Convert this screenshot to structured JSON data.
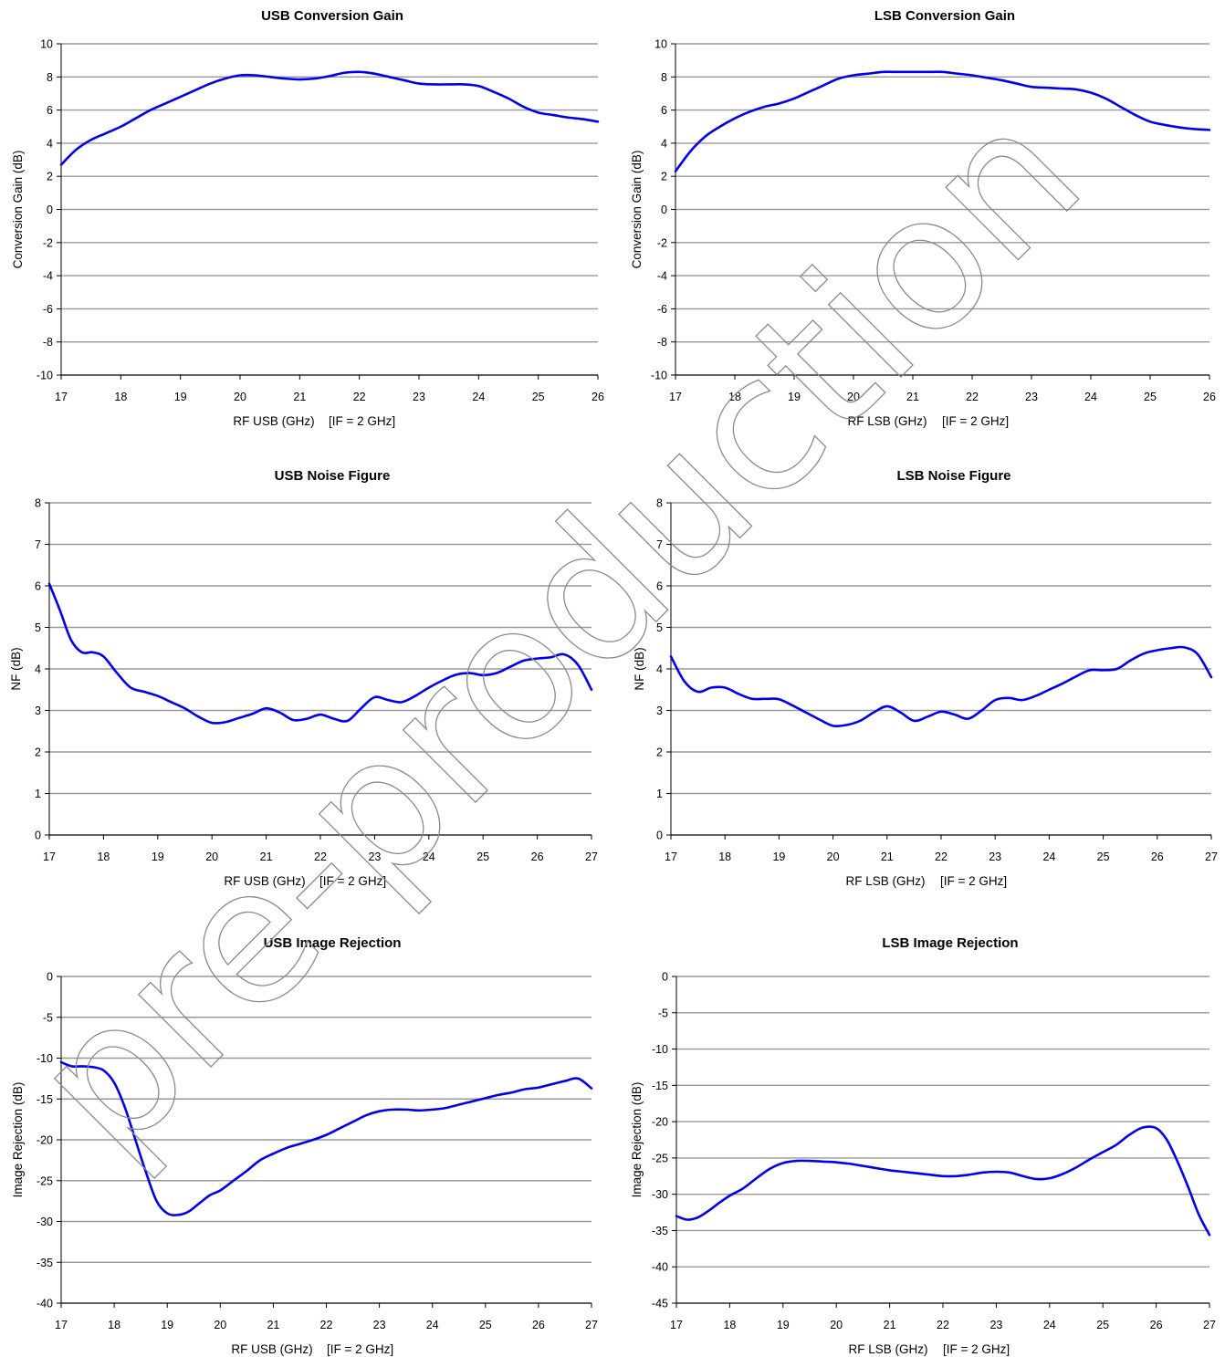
{
  "watermark": {
    "text": "pre-production"
  },
  "chart_data": [
    {
      "id": "usb-gain",
      "type": "line",
      "title": "USB Conversion Gain",
      "xlabel": "RF USB (GHz)",
      "xlabel_suffix": "[IF = 2 GHz]",
      "ylabel": "Conversion Gain  (dB)",
      "xlim": [
        17,
        26
      ],
      "ylim": [
        -10,
        10
      ],
      "xticks": [
        17,
        18,
        19,
        20,
        21,
        22,
        23,
        24,
        25,
        26
      ],
      "yticks": [
        -10,
        -8,
        -6,
        -4,
        -2,
        0,
        2,
        4,
        6,
        8,
        10
      ],
      "grid": true,
      "color": "#0000ee",
      "x": [
        17,
        17.25,
        17.5,
        17.75,
        18,
        18.25,
        18.5,
        18.75,
        19,
        19.25,
        19.5,
        19.75,
        20,
        20.25,
        20.5,
        20.75,
        21,
        21.25,
        21.5,
        21.75,
        22,
        22.25,
        22.5,
        22.75,
        23,
        23.25,
        23.5,
        23.75,
        24,
        24.25,
        24.5,
        24.75,
        25,
        25.25,
        25.5,
        25.75,
        26
      ],
      "y": [
        2.7,
        3.6,
        4.2,
        4.6,
        5.0,
        5.5,
        6.0,
        6.4,
        6.8,
        7.2,
        7.6,
        7.9,
        8.1,
        8.1,
        8.0,
        7.9,
        7.85,
        7.9,
        8.05,
        8.25,
        8.3,
        8.2,
        8.0,
        7.8,
        7.6,
        7.55,
        7.55,
        7.55,
        7.45,
        7.1,
        6.7,
        6.2,
        5.85,
        5.7,
        5.55,
        5.45,
        5.3
      ]
    },
    {
      "id": "lsb-gain",
      "type": "line",
      "title": "LSB Conversion Gain",
      "xlabel": "RF LSB (GHz)",
      "xlabel_suffix": "[IF = 2 GHz]",
      "ylabel": "Conversion Gain  (dB)",
      "xlim": [
        17,
        26
      ],
      "ylim": [
        -10,
        10
      ],
      "xticks": [
        17,
        18,
        19,
        20,
        21,
        22,
        23,
        24,
        25,
        26
      ],
      "yticks": [
        -10,
        -8,
        -6,
        -4,
        -2,
        0,
        2,
        4,
        6,
        8,
        10
      ],
      "grid": true,
      "color": "#0000ee",
      "x": [
        17,
        17.25,
        17.5,
        17.75,
        18,
        18.25,
        18.5,
        18.75,
        19,
        19.25,
        19.5,
        19.75,
        20,
        20.25,
        20.5,
        20.75,
        21,
        21.25,
        21.5,
        21.75,
        22,
        22.25,
        22.5,
        22.75,
        23,
        23.25,
        23.5,
        23.75,
        24,
        24.25,
        24.5,
        24.75,
        25,
        25.25,
        25.5,
        25.75,
        26
      ],
      "y": [
        2.3,
        3.5,
        4.4,
        5.0,
        5.5,
        5.9,
        6.2,
        6.4,
        6.7,
        7.1,
        7.5,
        7.9,
        8.1,
        8.2,
        8.3,
        8.3,
        8.3,
        8.3,
        8.3,
        8.2,
        8.1,
        7.95,
        7.8,
        7.6,
        7.4,
        7.35,
        7.3,
        7.25,
        7.05,
        6.7,
        6.2,
        5.7,
        5.3,
        5.1,
        4.95,
        4.85,
        4.8
      ]
    },
    {
      "id": "usb-nf",
      "type": "line",
      "title": "USB Noise Figure",
      "xlabel": "RF USB (GHz)",
      "xlabel_suffix": "[IF = 2 GHz]",
      "ylabel": "NF (dB)",
      "xlim": [
        17,
        27
      ],
      "ylim": [
        0,
        8
      ],
      "xticks": [
        17,
        18,
        19,
        20,
        21,
        22,
        23,
        24,
        25,
        26,
        27
      ],
      "yticks": [
        0,
        1,
        2,
        3,
        4,
        5,
        6,
        7,
        8
      ],
      "grid": true,
      "color": "#0000ee",
      "x": [
        17,
        17.2,
        17.4,
        17.6,
        17.8,
        18,
        18.25,
        18.5,
        18.75,
        19,
        19.25,
        19.5,
        19.75,
        20,
        20.25,
        20.5,
        20.75,
        21,
        21.25,
        21.5,
        21.75,
        22,
        22.25,
        22.5,
        22.75,
        23,
        23.25,
        23.5,
        23.75,
        24,
        24.25,
        24.5,
        24.75,
        25,
        25.25,
        25.5,
        25.75,
        26,
        26.25,
        26.5,
        26.75,
        27
      ],
      "y": [
        6.05,
        5.4,
        4.7,
        4.4,
        4.4,
        4.3,
        3.9,
        3.55,
        3.45,
        3.35,
        3.2,
        3.05,
        2.85,
        2.7,
        2.72,
        2.82,
        2.92,
        3.05,
        2.95,
        2.77,
        2.8,
        2.9,
        2.8,
        2.75,
        3.05,
        3.32,
        3.25,
        3.2,
        3.35,
        3.55,
        3.72,
        3.86,
        3.9,
        3.85,
        3.9,
        4.05,
        4.2,
        4.25,
        4.28,
        4.35,
        4.1,
        3.5
      ]
    },
    {
      "id": "lsb-nf",
      "type": "line",
      "title": "LSB Noise Figure",
      "xlabel": "RF LSB (GHz)",
      "xlabel_suffix": "[IF = 2 GHz]",
      "ylabel": "NF (dB)",
      "xlim": [
        17,
        27
      ],
      "ylim": [
        0,
        8
      ],
      "xticks": [
        17,
        18,
        19,
        20,
        21,
        22,
        23,
        24,
        25,
        26,
        27
      ],
      "yticks": [
        0,
        1,
        2,
        3,
        4,
        5,
        6,
        7,
        8
      ],
      "grid": true,
      "color": "#0000ee",
      "x": [
        17,
        17.25,
        17.5,
        17.75,
        18,
        18.25,
        18.5,
        18.75,
        19,
        19.25,
        19.5,
        19.75,
        20,
        20.25,
        20.5,
        20.75,
        21,
        21.25,
        21.5,
        21.75,
        22,
        22.25,
        22.5,
        22.75,
        23,
        23.25,
        23.5,
        23.75,
        24,
        24.25,
        24.5,
        24.75,
        25,
        25.25,
        25.5,
        25.75,
        26,
        26.25,
        26.5,
        26.75,
        27
      ],
      "y": [
        4.3,
        3.7,
        3.45,
        3.55,
        3.55,
        3.4,
        3.28,
        3.28,
        3.27,
        3.12,
        2.95,
        2.78,
        2.63,
        2.65,
        2.75,
        2.95,
        3.1,
        2.95,
        2.75,
        2.85,
        2.97,
        2.9,
        2.8,
        3.0,
        3.25,
        3.3,
        3.25,
        3.35,
        3.5,
        3.65,
        3.82,
        3.97,
        3.97,
        4.0,
        4.2,
        4.37,
        4.45,
        4.5,
        4.52,
        4.35,
        3.8
      ]
    },
    {
      "id": "usb-ir",
      "type": "line",
      "title": "USB Image Rejection",
      "xlabel": "RF USB (GHz)",
      "xlabel_suffix": "[IF = 2 GHz]",
      "ylabel": "Image Rejection (dB)",
      "xlim": [
        17,
        27
      ],
      "ylim": [
        -40,
        0
      ],
      "xticks": [
        17,
        18,
        19,
        20,
        21,
        22,
        23,
        24,
        25,
        26,
        27
      ],
      "yticks": [
        -40,
        -35,
        -30,
        -25,
        -20,
        -15,
        -10,
        -5,
        0
      ],
      "grid": true,
      "color": "#0000ee",
      "x": [
        17,
        17.2,
        17.4,
        17.6,
        17.8,
        18,
        18.2,
        18.4,
        18.6,
        18.8,
        19,
        19.2,
        19.4,
        19.6,
        19.8,
        20,
        20.25,
        20.5,
        20.75,
        21,
        21.25,
        21.5,
        21.75,
        22,
        22.25,
        22.5,
        22.75,
        23,
        23.25,
        23.5,
        23.75,
        24,
        24.25,
        24.5,
        24.75,
        25,
        25.25,
        25.5,
        25.75,
        26,
        26.25,
        26.5,
        26.75,
        27
      ],
      "y": [
        -10.5,
        -11.0,
        -11.0,
        -11.1,
        -11.5,
        -13.0,
        -16.0,
        -20.0,
        -24.0,
        -27.5,
        -29.0,
        -29.2,
        -28.8,
        -27.8,
        -26.8,
        -26.2,
        -25.0,
        -23.8,
        -22.5,
        -21.7,
        -21.0,
        -20.5,
        -20.0,
        -19.4,
        -18.6,
        -17.8,
        -17.0,
        -16.5,
        -16.3,
        -16.3,
        -16.4,
        -16.3,
        -16.1,
        -15.7,
        -15.3,
        -14.9,
        -14.5,
        -14.2,
        -13.8,
        -13.6,
        -13.2,
        -12.8,
        -12.5,
        -13.7
      ]
    },
    {
      "id": "lsb-ir",
      "type": "line",
      "title": "LSB Image Rejection",
      "xlabel": "RF LSB (GHz)",
      "xlabel_suffix": "[IF = 2 GHz]",
      "ylabel": "Image Rejection (dB)",
      "xlim": [
        17,
        27
      ],
      "ylim": [
        -45,
        0
      ],
      "xticks": [
        17,
        18,
        19,
        20,
        21,
        22,
        23,
        24,
        25,
        26,
        27
      ],
      "yticks": [
        -45,
        -40,
        -35,
        -30,
        -25,
        -20,
        -15,
        -10,
        -5,
        0
      ],
      "grid": true,
      "color": "#0000ee",
      "x": [
        17,
        17.2,
        17.4,
        17.6,
        17.8,
        18,
        18.25,
        18.5,
        18.75,
        19,
        19.25,
        19.5,
        19.75,
        20,
        20.25,
        20.5,
        20.75,
        21,
        21.25,
        21.5,
        21.75,
        22,
        22.25,
        22.5,
        22.75,
        23,
        23.25,
        23.5,
        23.75,
        24,
        24.25,
        24.5,
        24.75,
        25,
        25.25,
        25.5,
        25.75,
        26,
        26.2,
        26.4,
        26.6,
        26.8,
        27
      ],
      "y": [
        -33.0,
        -33.5,
        -33.2,
        -32.3,
        -31.2,
        -30.2,
        -29.2,
        -27.8,
        -26.5,
        -25.7,
        -25.4,
        -25.4,
        -25.5,
        -25.6,
        -25.8,
        -26.1,
        -26.4,
        -26.7,
        -26.9,
        -27.1,
        -27.3,
        -27.5,
        -27.5,
        -27.3,
        -27.0,
        -26.9,
        -27.0,
        -27.5,
        -27.9,
        -27.8,
        -27.2,
        -26.3,
        -25.2,
        -24.2,
        -23.2,
        -21.8,
        -20.8,
        -20.9,
        -22.5,
        -25.5,
        -29.0,
        -32.8,
        -35.6
      ]
    }
  ]
}
